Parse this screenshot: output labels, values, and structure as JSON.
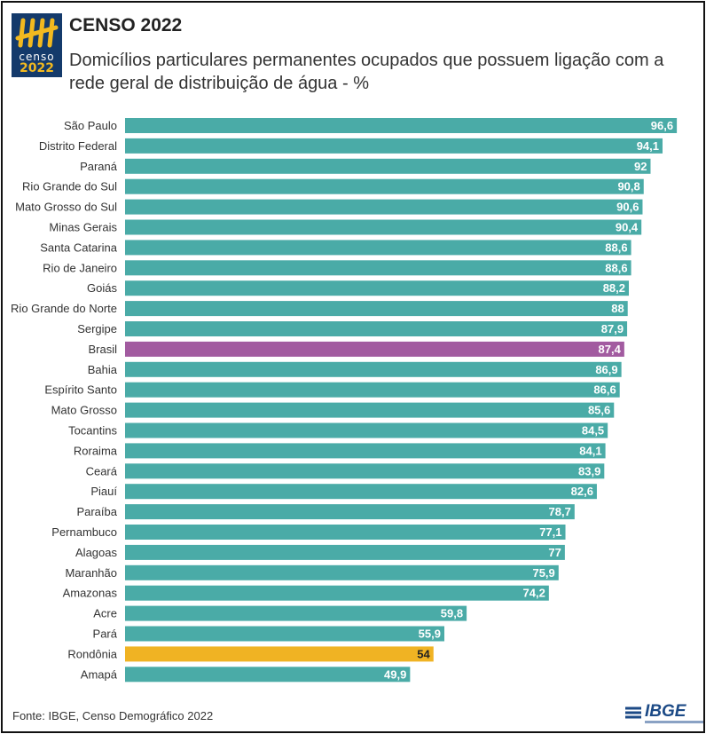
{
  "header": {
    "title": "CENSO 2022",
    "subtitle": "Domicílios particulares permanentes ocupados que possuem ligação com a rede geral de distribuição de água - %"
  },
  "logo": {
    "line1": "censo",
    "line2": "2022"
  },
  "footer": {
    "source": "Fonte: IBGE, Censo Demográfico 2022",
    "brand": "IBGE"
  },
  "colors": {
    "default": "#4aaba7",
    "highlight_brasil": "#a25ba0",
    "highlight_rondonia": "#f0b323",
    "logo_bg": "#143a6b"
  },
  "chart_data": {
    "type": "bar",
    "orientation": "horizontal",
    "title": "Domicílios particulares permanentes ocupados que possuem ligação com a rede geral de distribuição de água - %",
    "categories": [
      "São Paulo",
      "Distrito Federal",
      "Paraná",
      "Rio Grande do Sul",
      "Mato Grosso do Sul",
      "Minas Gerais",
      "Santa Catarina",
      "Rio de Janeiro",
      "Goiás",
      "Rio Grande do Norte",
      "Sergipe",
      "Brasil",
      "Bahia",
      "Espírito Santo",
      "Mato Grosso",
      "Tocantins",
      "Roraima",
      "Ceará",
      "Piauí",
      "Paraíba",
      "Pernambuco",
      "Alagoas",
      "Maranhão",
      "Amazonas",
      "Acre",
      "Pará",
      "Rondônia",
      "Amapá"
    ],
    "values": [
      96.6,
      94.1,
      92,
      90.8,
      90.6,
      90.4,
      88.6,
      88.6,
      88.2,
      88,
      87.9,
      87.4,
      86.9,
      86.6,
      85.6,
      84.5,
      84.1,
      83.9,
      82.6,
      78.7,
      77.1,
      77,
      75.9,
      74.2,
      59.8,
      55.9,
      54,
      49.9
    ],
    "labels": [
      "96,6",
      "94,1",
      "92",
      "90,8",
      "90,6",
      "90,4",
      "88,6",
      "88,6",
      "88,2",
      "88",
      "87,9",
      "87,4",
      "86,9",
      "86,6",
      "85,6",
      "84,5",
      "84,1",
      "83,9",
      "82,6",
      "78,7",
      "77,1",
      "77",
      "75,9",
      "74,2",
      "59,8",
      "55,9",
      "54",
      "49,9"
    ],
    "highlights": {
      "Brasil": "#a25ba0",
      "Rondônia": "#f0b323"
    },
    "xlim": [
      0,
      100
    ],
    "grid": false,
    "legend": "none"
  }
}
